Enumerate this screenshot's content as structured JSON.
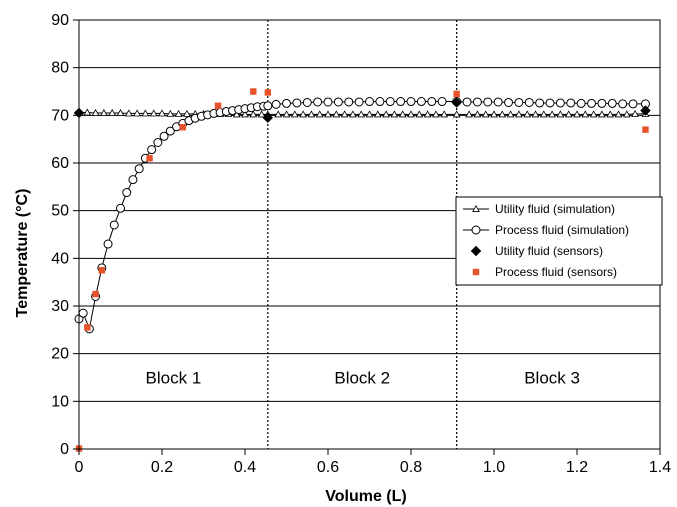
{
  "chart_data": {
    "type": "scatter",
    "title": "",
    "xlabel": "Volume (L)",
    "ylabel": "Temperature (°C)",
    "xlim": [
      0,
      1.4
    ],
    "ylim": [
      0,
      90
    ],
    "xticks": [
      "0",
      "0.2",
      "0.4",
      "0.6",
      "0.8",
      "1.0",
      "1.2",
      "1.4"
    ],
    "yticks": [
      "0",
      "10",
      "20",
      "30",
      "40",
      "50",
      "60",
      "70",
      "80",
      "90"
    ],
    "grid": "horizontal",
    "legend_position": "right",
    "block_boundaries": [
      0.455,
      0.91
    ],
    "blocks": [
      {
        "label": "Block 1",
        "x": 0.2275
      },
      {
        "label": "Block 2",
        "x": 0.6825
      },
      {
        "label": "Block 3",
        "x": 1.14
      }
    ],
    "series": [
      {
        "name": "Utility fluid (simulation)",
        "style": "line-triangle",
        "color": "#000000",
        "x": [
          0,
          0.02,
          0.04,
          0.06,
          0.08,
          0.1,
          0.12,
          0.14,
          0.16,
          0.18,
          0.2,
          0.22,
          0.24,
          0.26,
          0.28,
          0.3,
          0.32,
          0.34,
          0.36,
          0.38,
          0.4,
          0.42,
          0.44,
          0.455,
          0.48,
          0.5,
          0.52,
          0.54,
          0.56,
          0.58,
          0.6,
          0.62,
          0.64,
          0.66,
          0.68,
          0.7,
          0.72,
          0.74,
          0.76,
          0.78,
          0.8,
          0.82,
          0.84,
          0.86,
          0.88,
          0.91,
          0.94,
          0.96,
          0.98,
          1.0,
          1.02,
          1.04,
          1.06,
          1.08,
          1.1,
          1.12,
          1.14,
          1.16,
          1.18,
          1.2,
          1.22,
          1.24,
          1.26,
          1.28,
          1.3,
          1.32,
          1.34,
          1.365
        ],
        "y": [
          70.6,
          70.6,
          70.5,
          70.5,
          70.5,
          70.5,
          70.4,
          70.4,
          70.4,
          70.4,
          70.4,
          70.3,
          70.3,
          70.3,
          70.3,
          70.3,
          70.3,
          70.3,
          70.3,
          70.2,
          70.2,
          70.2,
          70.2,
          70.2,
          70.2,
          70.2,
          70.2,
          70.2,
          70.2,
          70.2,
          70.2,
          70.2,
          70.2,
          70.2,
          70.2,
          70.2,
          70.2,
          70.2,
          70.2,
          70.2,
          70.2,
          70.2,
          70.2,
          70.2,
          70.2,
          70.2,
          70.2,
          70.2,
          70.2,
          70.2,
          70.2,
          70.2,
          70.2,
          70.2,
          70.2,
          70.2,
          70.2,
          70.2,
          70.2,
          70.2,
          70.2,
          70.2,
          70.2,
          70.2,
          70.2,
          70.2,
          70.3,
          70.3
        ]
      },
      {
        "name": "Process fluid (simulation)",
        "style": "line-circle",
        "color": "#000000",
        "x": [
          0,
          0.01,
          0.025,
          0.04,
          0.055,
          0.07,
          0.085,
          0.1,
          0.115,
          0.13,
          0.145,
          0.16,
          0.175,
          0.19,
          0.205,
          0.22,
          0.235,
          0.25,
          0.265,
          0.28,
          0.295,
          0.31,
          0.325,
          0.34,
          0.355,
          0.37,
          0.385,
          0.4,
          0.415,
          0.43,
          0.445,
          0.455,
          0.475,
          0.5,
          0.525,
          0.55,
          0.575,
          0.6,
          0.625,
          0.65,
          0.675,
          0.7,
          0.725,
          0.75,
          0.775,
          0.8,
          0.825,
          0.85,
          0.875,
          0.91,
          0.935,
          0.96,
          0.985,
          1.01,
          1.035,
          1.06,
          1.085,
          1.11,
          1.135,
          1.16,
          1.185,
          1.21,
          1.235,
          1.26,
          1.285,
          1.31,
          1.335,
          1.365
        ],
        "y": [
          27.3,
          28.5,
          25.2,
          32.0,
          38.0,
          43.0,
          47.0,
          50.5,
          53.8,
          56.5,
          58.8,
          61.0,
          62.8,
          64.3,
          65.6,
          66.7,
          67.6,
          68.3,
          68.9,
          69.4,
          69.8,
          70.1,
          70.4,
          70.6,
          70.8,
          71.0,
          71.2,
          71.4,
          71.6,
          71.8,
          71.9,
          72.0,
          72.3,
          72.5,
          72.6,
          72.7,
          72.8,
          72.8,
          72.8,
          72.8,
          72.8,
          72.9,
          72.9,
          72.9,
          72.9,
          72.9,
          72.9,
          72.9,
          72.9,
          72.9,
          72.8,
          72.8,
          72.8,
          72.8,
          72.7,
          72.7,
          72.7,
          72.6,
          72.6,
          72.6,
          72.6,
          72.5,
          72.5,
          72.5,
          72.5,
          72.4,
          72.4,
          72.4
        ]
      },
      {
        "name": "Utility fluid (sensors)",
        "style": "marker-diamond",
        "color": "#000000",
        "x": [
          0,
          0.455,
          0.91,
          1.365
        ],
        "y": [
          70.5,
          69.5,
          72.7,
          71.0
        ]
      },
      {
        "name": "Process fluid (sensors)",
        "style": "marker-square",
        "color": "#e8522b",
        "x": [
          0,
          0.02,
          0.04,
          0.055,
          0.17,
          0.25,
          0.335,
          0.42,
          0.455,
          0.91,
          1.365
        ],
        "y": [
          0.1,
          25.5,
          32.5,
          37.5,
          61.0,
          67.5,
          72.0,
          75.0,
          74.8,
          74.5,
          67.0
        ]
      }
    ]
  }
}
